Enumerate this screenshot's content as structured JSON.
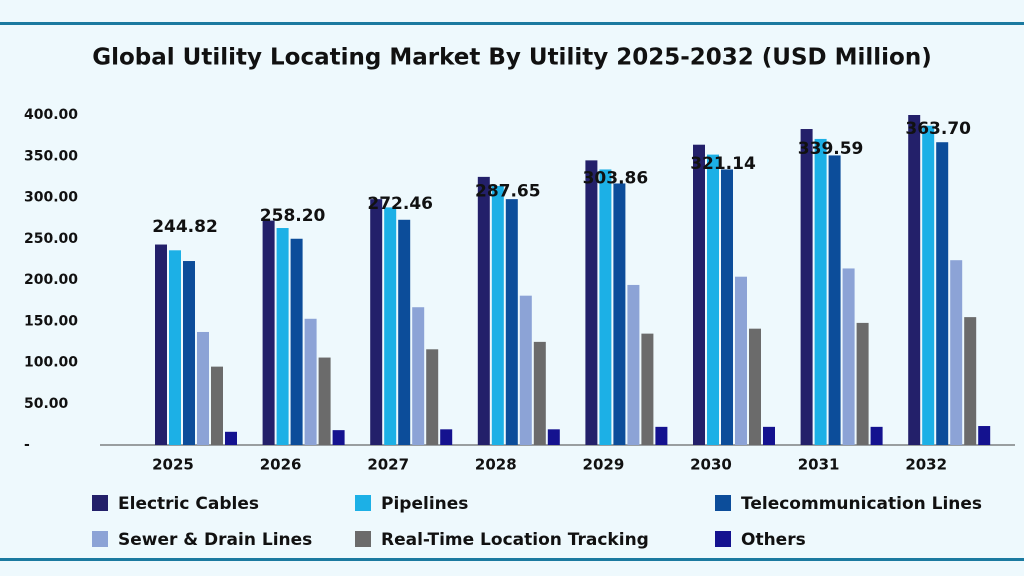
{
  "chart_data": {
    "type": "bar",
    "title": "Global Utility Locating Market By Utility 2025-2032 (USD Million)",
    "categories": [
      "2025",
      "2026",
      "2027",
      "2028",
      "2029",
      "2030",
      "2031",
      "2032"
    ],
    "series": [
      {
        "name": "Electric Cables",
        "color": "#23206a",
        "values": [
          243,
          272,
          298,
          325,
          345,
          364,
          383,
          400
        ]
      },
      {
        "name": "Pipelines",
        "color": "#1cb0e6",
        "values": [
          236,
          263,
          288,
          314,
          334,
          352,
          371,
          387
        ]
      },
      {
        "name": "Telecommunication Lines",
        "color": "#0c4d9a",
        "values": [
          223,
          250,
          273,
          298,
          317,
          334,
          351,
          367
        ]
      },
      {
        "name": "Sewer & Drain Lines",
        "color": "#8ca3d6",
        "values": [
          137,
          153,
          167,
          181,
          194,
          204,
          214,
          224
        ]
      },
      {
        "name": "Real-Time Location Tracking",
        "color": "#6b6b6b",
        "values": [
          95,
          106,
          116,
          125,
          135,
          141,
          148,
          155
        ]
      },
      {
        "name": "Others",
        "color": "#14128f",
        "values": [
          16,
          18,
          19,
          19,
          22,
          22,
          22,
          23
        ]
      }
    ],
    "totals": [
      {
        "value": 244.82,
        "label": "244.82"
      },
      {
        "value": 258.2,
        "label": "258.20"
      },
      {
        "value": 272.46,
        "label": "272.46"
      },
      {
        "value": 287.65,
        "label": "287.65"
      },
      {
        "value": 303.86,
        "label": "303.86"
      },
      {
        "value": 321.14,
        "label": "321.14"
      },
      {
        "value": 339.59,
        "label": "339.59"
      },
      {
        "value": 363.7,
        "label": "363.70"
      }
    ],
    "ylim": [
      0,
      410
    ],
    "yticks": [
      {
        "value": 0,
        "label": "-"
      },
      {
        "value": 50,
        "label": "50.00"
      },
      {
        "value": 100,
        "label": "100.00"
      },
      {
        "value": 150,
        "label": "150.00"
      },
      {
        "value": 200,
        "label": "200.00"
      },
      {
        "value": 250,
        "label": "250.00"
      },
      {
        "value": 300,
        "label": "300.00"
      },
      {
        "value": 350,
        "label": "350.00"
      },
      {
        "value": 400,
        "label": "400.00"
      }
    ],
    "grid": false
  }
}
